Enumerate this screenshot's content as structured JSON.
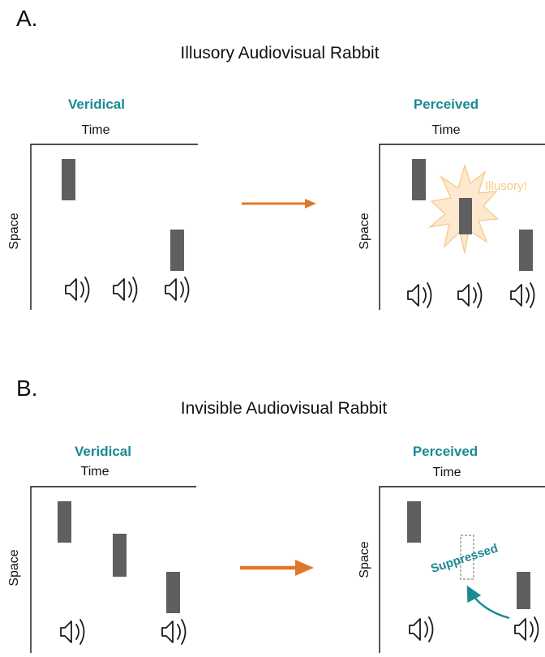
{
  "panel_a": {
    "letter": "A.",
    "title": "Illusory Audiovisual Rabbit",
    "veridical_label": "Veridical",
    "perceived_label": "Perceived",
    "time_label": "Time",
    "space_label": "Space",
    "illusory_label": "Illusory!"
  },
  "panel_b": {
    "letter": "B.",
    "title": "Invisible Audiovisual Rabbit",
    "veridical_label": "Veridical",
    "perceived_label": "Perceived",
    "time_label": "Time",
    "space_label": "Space",
    "suppressed_label": "Suppressed"
  },
  "colors": {
    "accent_teal": "#1a8a93",
    "arrow_orange": "#e0782a",
    "bar_gray": "#5f5f5f",
    "illusory_glow": "#f7c98a"
  },
  "icons": [
    "speaker-icon"
  ]
}
